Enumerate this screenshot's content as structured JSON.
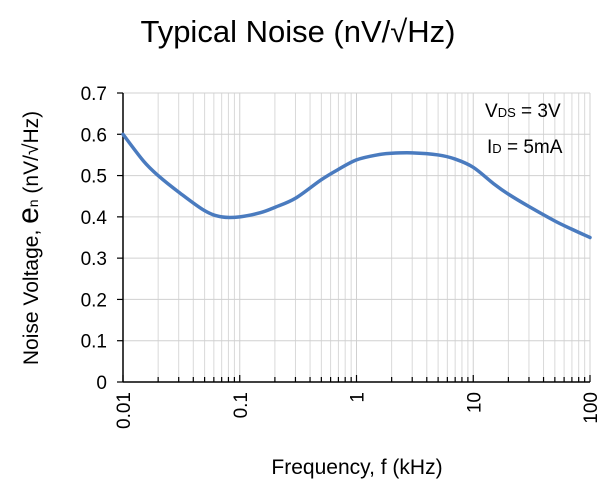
{
  "chart_data": {
    "type": "line",
    "title": "Typical Noise (nV/√Hz)",
    "xlabel": "Frequency, f (kHz)",
    "ylabel": {
      "prefix": "Noise Voltage, ",
      "symbol": "e",
      "subscript": "n",
      "suffix": " (nV/√Hz)"
    },
    "x_scale": "log",
    "xlim": [
      0.01,
      100
    ],
    "ylim": [
      0,
      0.7
    ],
    "x_ticks": [
      0.01,
      0.1,
      1,
      10,
      100
    ],
    "x_tick_labels": [
      "0.01",
      "0.1",
      "1",
      "10",
      "100"
    ],
    "y_ticks": [
      0,
      0.1,
      0.2,
      0.3,
      0.4,
      0.5,
      0.6,
      0.7
    ],
    "y_tick_labels": [
      "0",
      "0.1",
      "0.2",
      "0.3",
      "0.4",
      "0.5",
      "0.6",
      "0.7"
    ],
    "grid": true,
    "line_color": "#4a7bbf",
    "annotations": [
      {
        "main": "V",
        "sub": "DS",
        "rest": " = 3V"
      },
      {
        "main": "I",
        "sub": "D",
        "rest": " = 5mA"
      }
    ],
    "series": [
      {
        "x": [
          0.01,
          0.015,
          0.02,
          0.03,
          0.05,
          0.07,
          0.1,
          0.15,
          0.2,
          0.3,
          0.5,
          0.7,
          1,
          1.5,
          2,
          3,
          5,
          7,
          10,
          15,
          20,
          30,
          50,
          70,
          100
        ],
        "values": [
          0.6,
          0.535,
          0.5,
          0.46,
          0.415,
          0.4,
          0.4,
          0.41,
          0.423,
          0.445,
          0.49,
          0.515,
          0.538,
          0.55,
          0.554,
          0.555,
          0.55,
          0.54,
          0.52,
          0.48,
          0.455,
          0.425,
          0.39,
          0.37,
          0.35
        ]
      }
    ]
  }
}
